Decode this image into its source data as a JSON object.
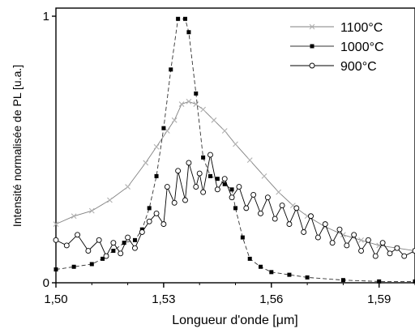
{
  "chart_data": {
    "type": "line",
    "title": "",
    "xlabel": "Longueur d'onde [μm]",
    "ylabel": "Intensité normalisée de PL [u.a.]",
    "xlim": [
      1.5,
      1.6
    ],
    "ylim": [
      0,
      1
    ],
    "x_ticks": [
      1.5,
      1.53,
      1.56,
      1.59
    ],
    "x_tick_labels": [
      "1,50",
      "1,53",
      "1,56",
      "1,59"
    ],
    "y_ticks": [
      0,
      1
    ],
    "y_tick_labels": [
      "0",
      "1"
    ],
    "grid": false,
    "legend_position": "top-right",
    "series": [
      {
        "name": "1100°C",
        "marker": "x",
        "color": "#b0b0b0",
        "line_color": "#808080",
        "points": [
          [
            1.5,
            0.22
          ],
          [
            1.505,
            0.25
          ],
          [
            1.51,
            0.27
          ],
          [
            1.515,
            0.31
          ],
          [
            1.52,
            0.36
          ],
          [
            1.525,
            0.45
          ],
          [
            1.528,
            0.51
          ],
          [
            1.531,
            0.57
          ],
          [
            1.533,
            0.61
          ],
          [
            1.535,
            0.67
          ],
          [
            1.537,
            0.68
          ],
          [
            1.539,
            0.67
          ],
          [
            1.541,
            0.65
          ],
          [
            1.544,
            0.61
          ],
          [
            1.547,
            0.57
          ],
          [
            1.55,
            0.52
          ],
          [
            1.554,
            0.46
          ],
          [
            1.558,
            0.4
          ],
          [
            1.562,
            0.34
          ],
          [
            1.566,
            0.29
          ],
          [
            1.57,
            0.25
          ],
          [
            1.575,
            0.21
          ],
          [
            1.58,
            0.18
          ],
          [
            1.585,
            0.16
          ],
          [
            1.59,
            0.14
          ],
          [
            1.595,
            0.13
          ],
          [
            1.6,
            0.12
          ]
        ]
      },
      {
        "name": "1000°C",
        "marker": "square",
        "color": "#000000",
        "line_color": "#333333",
        "points": [
          [
            1.5,
            0.05
          ],
          [
            1.505,
            0.06
          ],
          [
            1.51,
            0.07
          ],
          [
            1.513,
            0.09
          ],
          [
            1.516,
            0.12
          ],
          [
            1.519,
            0.15
          ],
          [
            1.522,
            0.16
          ],
          [
            1.524,
            0.2
          ],
          [
            1.526,
            0.28
          ],
          [
            1.528,
            0.4
          ],
          [
            1.53,
            0.58
          ],
          [
            1.532,
            0.8
          ],
          [
            1.534,
            0.99
          ],
          [
            1.536,
            0.99
          ],
          [
            1.537,
            0.94
          ],
          [
            1.539,
            0.71
          ],
          [
            1.541,
            0.47
          ],
          [
            1.543,
            0.4
          ],
          [
            1.545,
            0.39
          ],
          [
            1.547,
            0.37
          ],
          [
            1.549,
            0.35
          ],
          [
            1.55,
            0.28
          ],
          [
            1.552,
            0.17
          ],
          [
            1.554,
            0.09
          ],
          [
            1.557,
            0.06
          ],
          [
            1.56,
            0.04
          ],
          [
            1.565,
            0.03
          ],
          [
            1.57,
            0.02
          ],
          [
            1.58,
            0.01
          ],
          [
            1.59,
            0.005
          ],
          [
            1.6,
            0.005
          ]
        ]
      },
      {
        "name": "900°C",
        "marker": "circle",
        "color": "#ffffff",
        "line_color": "#000000",
        "points": [
          [
            1.5,
            0.16
          ],
          [
            1.503,
            0.14
          ],
          [
            1.506,
            0.18
          ],
          [
            1.509,
            0.12
          ],
          [
            1.512,
            0.16
          ],
          [
            1.514,
            0.1
          ],
          [
            1.516,
            0.15
          ],
          [
            1.518,
            0.11
          ],
          [
            1.52,
            0.17
          ],
          [
            1.522,
            0.13
          ],
          [
            1.524,
            0.19
          ],
          [
            1.526,
            0.23
          ],
          [
            1.528,
            0.26
          ],
          [
            1.53,
            0.22
          ],
          [
            1.531,
            0.36
          ],
          [
            1.533,
            0.3
          ],
          [
            1.534,
            0.42
          ],
          [
            1.536,
            0.31
          ],
          [
            1.537,
            0.45
          ],
          [
            1.539,
            0.36
          ],
          [
            1.54,
            0.41
          ],
          [
            1.541,
            0.34
          ],
          [
            1.543,
            0.48
          ],
          [
            1.545,
            0.35
          ],
          [
            1.547,
            0.39
          ],
          [
            1.549,
            0.32
          ],
          [
            1.551,
            0.36
          ],
          [
            1.553,
            0.28
          ],
          [
            1.555,
            0.33
          ],
          [
            1.557,
            0.26
          ],
          [
            1.559,
            0.32
          ],
          [
            1.561,
            0.24
          ],
          [
            1.563,
            0.29
          ],
          [
            1.565,
            0.22
          ],
          [
            1.567,
            0.28
          ],
          [
            1.569,
            0.19
          ],
          [
            1.571,
            0.25
          ],
          [
            1.573,
            0.17
          ],
          [
            1.575,
            0.22
          ],
          [
            1.577,
            0.15
          ],
          [
            1.579,
            0.2
          ],
          [
            1.581,
            0.14
          ],
          [
            1.583,
            0.18
          ],
          [
            1.585,
            0.12
          ],
          [
            1.587,
            0.16
          ],
          [
            1.589,
            0.1
          ],
          [
            1.591,
            0.15
          ],
          [
            1.593,
            0.11
          ],
          [
            1.595,
            0.13
          ],
          [
            1.597,
            0.1
          ],
          [
            1.6,
            0.12
          ]
        ]
      }
    ]
  }
}
